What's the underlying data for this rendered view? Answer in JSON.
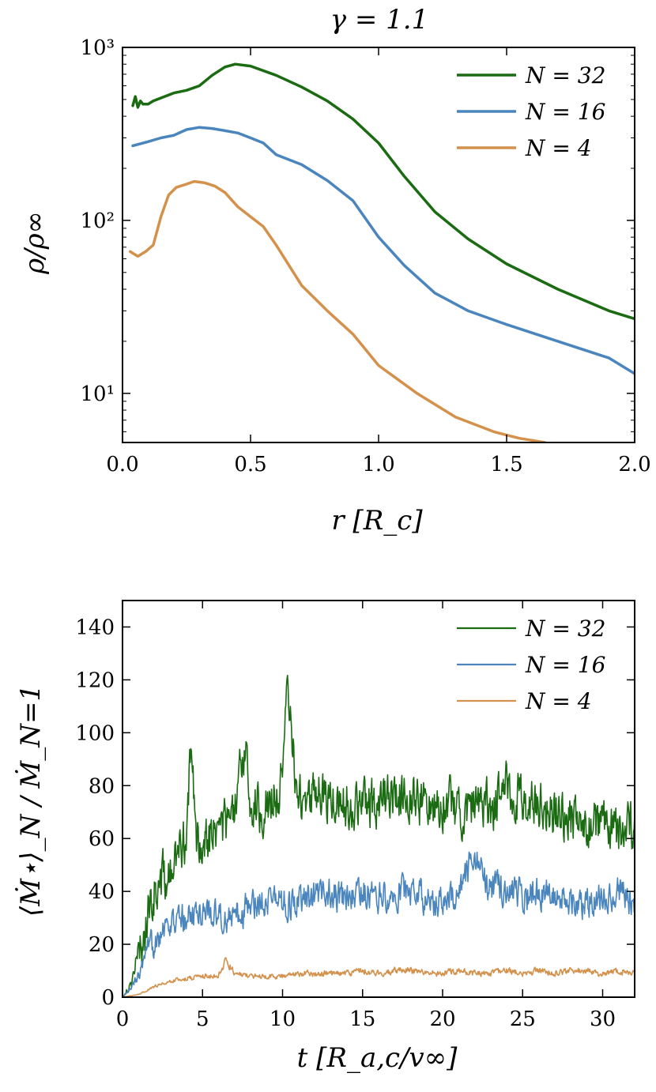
{
  "chart_data": [
    {
      "type": "line",
      "title": "γ = 1.1",
      "xlabel": "r [R_c]",
      "ylabel": "ρ/ρ∞",
      "xscale": "linear",
      "yscale": "log",
      "xlim": [
        0,
        2
      ],
      "ylim": [
        5.2,
        1000
      ],
      "xticks": [
        0,
        0.5,
        1,
        1.5,
        2
      ],
      "xtick_labels": [
        "0.0",
        "0.5",
        "1.0",
        "1.5",
        "2.0"
      ],
      "yticks": [
        10,
        100,
        1000
      ],
      "ytick_labels": [
        "10¹",
        "10²",
        "10³"
      ],
      "legend_position": "top-right",
      "series": [
        {
          "name": "N = 32",
          "color": "#1a6b12",
          "line_width": 3.5,
          "x": [
            0.04,
            0.05,
            0.06,
            0.07,
            0.08,
            0.1,
            0.12,
            0.15,
            0.2,
            0.25,
            0.3,
            0.35,
            0.4,
            0.44,
            0.5,
            0.6,
            0.7,
            0.8,
            0.9,
            1.0,
            1.1,
            1.22,
            1.35,
            1.5,
            1.7,
            1.9,
            2.0
          ],
          "y": [
            460,
            520,
            450,
            490,
            470,
            470,
            490,
            510,
            545,
            565,
            600,
            690,
            770,
            800,
            780,
            690,
            590,
            490,
            385,
            280,
            180,
            112,
            78,
            56,
            40,
            30,
            27
          ]
        },
        {
          "name": "N = 16",
          "color": "#4a86bd",
          "line_width": 3.5,
          "x": [
            0.04,
            0.1,
            0.15,
            0.2,
            0.25,
            0.3,
            0.35,
            0.4,
            0.45,
            0.5,
            0.55,
            0.6,
            0.7,
            0.8,
            0.9,
            1.0,
            1.1,
            1.22,
            1.35,
            1.5,
            1.7,
            1.9,
            2.0
          ],
          "y": [
            270,
            285,
            300,
            310,
            335,
            345,
            340,
            330,
            320,
            300,
            280,
            240,
            210,
            170,
            130,
            80,
            55,
            38,
            30,
            25,
            20,
            16,
            13
          ]
        },
        {
          "name": "N = 4",
          "color": "#d4914c",
          "line_width": 3.5,
          "x": [
            0.03,
            0.06,
            0.09,
            0.12,
            0.15,
            0.18,
            0.21,
            0.25,
            0.28,
            0.32,
            0.36,
            0.4,
            0.45,
            0.5,
            0.55,
            0.6,
            0.7,
            0.8,
            0.9,
            1.0,
            1.15,
            1.3,
            1.45,
            1.55,
            1.65
          ],
          "y": [
            66,
            62,
            66,
            72,
            105,
            140,
            155,
            162,
            168,
            165,
            158,
            145,
            120,
            105,
            92,
            72,
            42,
            30,
            22,
            14.5,
            10,
            7.3,
            6.0,
            5.5,
            5.2
          ]
        }
      ]
    },
    {
      "type": "line",
      "title": "",
      "xlabel": "t [R_a,c/v∞]",
      "ylabel": "⟨Ṁ⋆⟩_N / Ṁ_N=1",
      "xscale": "linear",
      "yscale": "linear",
      "xlim": [
        0,
        32
      ],
      "ylim": [
        0,
        150
      ],
      "xticks": [
        0,
        5,
        10,
        15,
        20,
        25,
        30
      ],
      "xtick_labels": [
        "0",
        "5",
        "10",
        "15",
        "20",
        "25",
        "30"
      ],
      "yticks": [
        0,
        20,
        40,
        60,
        80,
        100,
        120,
        140
      ],
      "ytick_labels": [
        "0",
        "20",
        "40",
        "60",
        "80",
        "100",
        "120",
        "140"
      ],
      "legend_position": "top-right",
      "series": [
        {
          "name": "N = 32",
          "color": "#1a6b12",
          "line_width": 1.6,
          "x": [
            0,
            0.5,
            1,
            1.5,
            2,
            2.5,
            3,
            3.5,
            4,
            4.3,
            4.6,
            5,
            6,
            7,
            7.7,
            8,
            9,
            10,
            10.3,
            11,
            12,
            13,
            14,
            15,
            16,
            17,
            18,
            19,
            20,
            21,
            22,
            23,
            24,
            25,
            26,
            27,
            28,
            29,
            30,
            31,
            32
          ],
          "y": [
            0,
            5,
            15,
            28,
            40,
            45,
            45,
            55,
            62,
            95,
            58,
            60,
            64,
            68,
            98,
            72,
            72,
            80,
            117,
            73,
            78,
            75,
            73,
            72,
            75,
            76,
            78,
            72,
            74,
            71,
            73,
            72,
            80,
            74,
            73,
            70,
            68,
            66,
            64,
            62,
            64
          ],
          "noise_amplitude": 8
        },
        {
          "name": "N = 16",
          "color": "#4a86bd",
          "line_width": 1.6,
          "x": [
            0,
            0.5,
            1,
            1.5,
            2,
            2.5,
            3,
            4,
            5,
            6,
            7,
            8,
            9,
            10,
            11,
            12,
            13,
            14,
            15,
            16,
            17,
            18,
            19,
            20,
            21,
            22,
            23,
            24,
            25,
            26,
            27,
            28,
            29,
            30,
            31,
            32
          ],
          "y": [
            0,
            3,
            8,
            15,
            22,
            27,
            28,
            30,
            33,
            31,
            30,
            35,
            38,
            36,
            35,
            38,
            40,
            36,
            40,
            38,
            39,
            41,
            37,
            36,
            38,
            55,
            40,
            41,
            38,
            40,
            39,
            36,
            35,
            38,
            40,
            35
          ],
          "noise_amplitude": 5
        },
        {
          "name": "N = 4",
          "color": "#d4914c",
          "line_width": 1.6,
          "x": [
            0,
            0.5,
            1,
            2,
            3,
            4,
            5,
            6,
            6.5,
            7,
            8,
            9,
            10,
            11,
            12,
            13,
            14,
            15,
            16,
            17,
            18,
            19,
            20,
            21,
            22,
            23,
            24,
            25,
            26,
            27,
            28,
            29,
            30,
            31,
            32
          ],
          "y": [
            0,
            0.5,
            1,
            4,
            6,
            7,
            8,
            8,
            14,
            9,
            8,
            8,
            8,
            9,
            9,
            9,
            9,
            10,
            9,
            10,
            10,
            9,
            9,
            10,
            9,
            9,
            10,
            9,
            10,
            9,
            10,
            10,
            9,
            10,
            9
          ],
          "noise_amplitude": 2.2
        }
      ]
    }
  ]
}
